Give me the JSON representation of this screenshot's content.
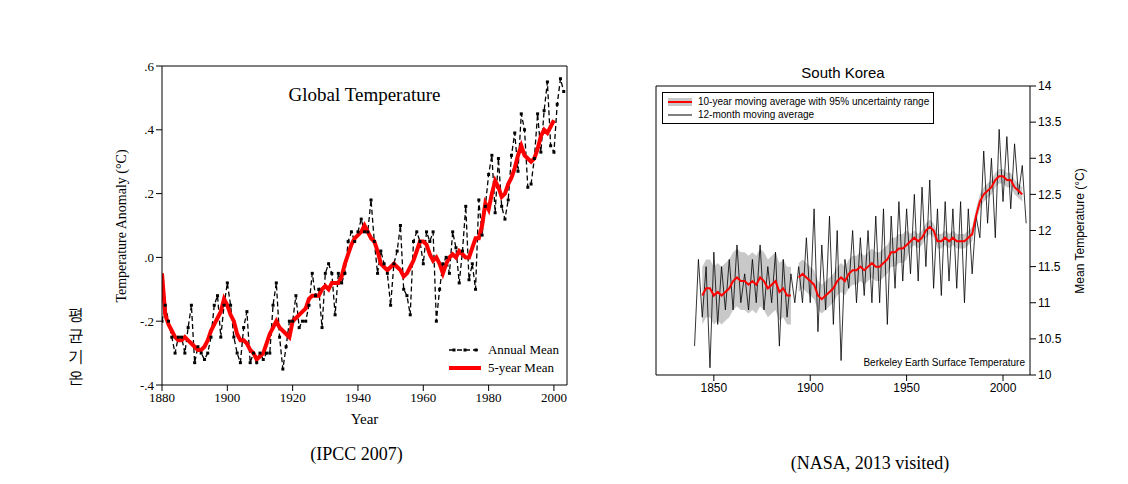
{
  "label": "평균기온",
  "chart_data": [
    {
      "type": "line",
      "title": "Global Temperature",
      "caption": "(IPCC 2007)",
      "xlabel": "Year",
      "ylabel": "Temperature Anomaly (°C)",
      "x": [
        1880,
        1881,
        1882,
        1883,
        1884,
        1885,
        1886,
        1887,
        1888,
        1889,
        1890,
        1891,
        1892,
        1893,
        1894,
        1895,
        1896,
        1897,
        1898,
        1899,
        1900,
        1901,
        1902,
        1903,
        1904,
        1905,
        1906,
        1907,
        1908,
        1909,
        1910,
        1911,
        1912,
        1913,
        1914,
        1915,
        1916,
        1917,
        1918,
        1919,
        1920,
        1921,
        1922,
        1923,
        1924,
        1925,
        1926,
        1927,
        1928,
        1929,
        1930,
        1931,
        1932,
        1933,
        1934,
        1935,
        1936,
        1937,
        1938,
        1939,
        1940,
        1941,
        1942,
        1943,
        1944,
        1945,
        1946,
        1947,
        1948,
        1949,
        1950,
        1951,
        1952,
        1953,
        1954,
        1955,
        1956,
        1957,
        1958,
        1959,
        1960,
        1961,
        1962,
        1963,
        1964,
        1965,
        1966,
        1967,
        1968,
        1969,
        1970,
        1971,
        1972,
        1973,
        1974,
        1975,
        1976,
        1977,
        1978,
        1979,
        1980,
        1981,
        1982,
        1983,
        1984,
        1985,
        1986,
        1987,
        1988,
        1989,
        1990,
        1991,
        1992,
        1993,
        1994,
        1995,
        1996,
        1997,
        1998,
        1999,
        2000,
        2001,
        2002,
        2003
      ],
      "series": [
        {
          "name": "Annual Mean",
          "color": "#000000",
          "line_style": "dashed",
          "marker": "square",
          "values": [
            -0.2,
            -0.15,
            -0.2,
            -0.25,
            -0.3,
            -0.25,
            -0.25,
            -0.3,
            -0.22,
            -0.15,
            -0.33,
            -0.28,
            -0.3,
            -0.32,
            -0.3,
            -0.25,
            -0.15,
            -0.12,
            -0.25,
            -0.15,
            -0.08,
            -0.15,
            -0.25,
            -0.3,
            -0.33,
            -0.22,
            -0.17,
            -0.33,
            -0.3,
            -0.33,
            -0.3,
            -0.32,
            -0.3,
            -0.3,
            -0.15,
            -0.08,
            -0.25,
            -0.35,
            -0.28,
            -0.2,
            -0.2,
            -0.12,
            -0.22,
            -0.2,
            -0.2,
            -0.15,
            -0.05,
            -0.12,
            -0.1,
            -0.22,
            -0.05,
            -0.02,
            -0.05,
            -0.18,
            -0.05,
            -0.08,
            -0.05,
            0.05,
            0.08,
            0.05,
            0.08,
            0.12,
            0.08,
            0.08,
            0.18,
            0.05,
            -0.05,
            0.02,
            -0.02,
            -0.05,
            -0.15,
            -0.02,
            0.02,
            0.1,
            -0.1,
            -0.12,
            -0.18,
            0.05,
            0.08,
            0.05,
            -0.02,
            0.08,
            0.05,
            0.08,
            -0.2,
            -0.1,
            -0.02,
            0,
            -0.05,
            0.08,
            0.03,
            -0.08,
            0.02,
            0.16,
            -0.07,
            -0.02,
            -0.1,
            0.18,
            0.07,
            0.16,
            0.26,
            0.32,
            0.14,
            0.31,
            0.16,
            0.12,
            0.18,
            0.32,
            0.39,
            0.27,
            0.45,
            0.4,
            0.22,
            0.23,
            0.31,
            0.45,
            0.33,
            0.46,
            0.55,
            0.35,
            0.33,
            0.48,
            0.56,
            0.52
          ]
        },
        {
          "name": "5-year Mean",
          "color": "#ff0000",
          "line_style": "solid",
          "values": [
            -0.05,
            -0.18,
            -0.21,
            -0.23,
            -0.25,
            -0.26,
            -0.26,
            -0.25,
            -0.26,
            -0.27,
            -0.28,
            -0.29,
            -0.29,
            -0.28,
            -0.26,
            -0.23,
            -0.21,
            -0.19,
            -0.17,
            -0.13,
            -0.15,
            -0.18,
            -0.2,
            -0.24,
            -0.26,
            -0.26,
            -0.27,
            -0.29,
            -0.3,
            -0.32,
            -0.31,
            -0.3,
            -0.27,
            -0.24,
            -0.22,
            -0.2,
            -0.22,
            -0.23,
            -0.24,
            -0.25,
            -0.2,
            -0.19,
            -0.18,
            -0.17,
            -0.16,
            -0.13,
            -0.12,
            -0.12,
            -0.12,
            -0.1,
            -0.09,
            -0.1,
            -0.08,
            -0.08,
            -0.08,
            -0.06,
            -0.02,
            0.01,
            0.04,
            0.06,
            0.07,
            0.08,
            0.1,
            0.08,
            0.06,
            0.05,
            0.02,
            -0.02,
            -0.03,
            -0.04,
            -0.03,
            -0.02,
            -0.03,
            -0.04,
            -0.06,
            -0.05,
            -0.03,
            -0.01,
            0.02,
            0.05,
            0.05,
            0.04,
            0.01,
            -0.01,
            0,
            -0.02,
            -0.05,
            -0.02,
            0,
            0.01,
            0,
            0.02,
            0.01,
            0,
            0,
            0.03,
            0.06,
            0.06,
            0.1,
            0.17,
            0.15,
            0.2,
            0.24,
            0.22,
            0.19,
            0.2,
            0.23,
            0.25,
            0.28,
            0.32,
            0.35,
            0.32,
            0.31,
            0.3,
            0.31,
            0.34,
            0.38,
            0.4,
            0.39,
            0.41,
            0.43,
            null,
            null,
            null
          ]
        }
      ],
      "xlim": [
        1880,
        2004
      ],
      "xticks": [
        1880,
        1900,
        1920,
        1940,
        1960,
        1980,
        2000
      ],
      "ylim": [
        -0.4,
        0.6
      ],
      "yticks": [
        {
          "value": -0.4,
          "label": "-.4"
        },
        {
          "value": -0.2,
          "label": "-.2"
        },
        {
          "value": 0,
          "label": ".0"
        },
        {
          "value": 0.2,
          "label": ".2"
        },
        {
          "value": 0.4,
          "label": ".4"
        },
        {
          "value": 0.6,
          "label": ".6"
        }
      ],
      "legend": "lower right",
      "grid": false
    },
    {
      "type": "line",
      "title": "South Korea",
      "caption": "(NASA, 2013 visited)",
      "ylabel": "Mean Temperature (°C)",
      "annotation": "Berkeley Earth Surface Temperature",
      "x": [
        1840,
        1842,
        1844,
        1846,
        1848,
        1850,
        1852,
        1854,
        1856,
        1858,
        1860,
        1862,
        1864,
        1866,
        1868,
        1870,
        1872,
        1874,
        1876,
        1878,
        1880,
        1882,
        1884,
        1886,
        1888,
        1890,
        1892,
        1894,
        1896,
        1898,
        1900,
        1902,
        1904,
        1906,
        1908,
        1910,
        1912,
        1914,
        1916,
        1918,
        1920,
        1922,
        1924,
        1926,
        1928,
        1930,
        1932,
        1934,
        1936,
        1938,
        1940,
        1942,
        1944,
        1946,
        1948,
        1950,
        1952,
        1954,
        1956,
        1958,
        1960,
        1962,
        1964,
        1966,
        1968,
        1970,
        1972,
        1974,
        1976,
        1978,
        1980,
        1982,
        1984,
        1986,
        1988,
        1990,
        1992,
        1994,
        1996,
        1998,
        2000,
        2002,
        2004,
        2006,
        2008,
        2010,
        2012
      ],
      "series": [
        {
          "name": "10-year moving average with 95% uncertainty range",
          "color": "#ff0000",
          "line_style": "solid",
          "values": [
            null,
            null,
            11.1,
            11.2,
            11.2,
            11.1,
            11.15,
            11.1,
            11.15,
            11.2,
            11.3,
            11.35,
            11.3,
            11.3,
            11.25,
            11.3,
            11.25,
            11.35,
            11.3,
            11.2,
            11.25,
            11.3,
            11.15,
            11.2,
            11.1,
            11.1,
            null,
            11.35,
            11.4,
            11.35,
            11.3,
            11.25,
            11.1,
            11.05,
            11.1,
            11.15,
            11.2,
            11.3,
            11.35,
            11.3,
            11.4,
            11.45,
            11.45,
            11.5,
            11.45,
            11.5,
            11.55,
            11.5,
            11.5,
            11.55,
            11.6,
            11.7,
            11.7,
            11.75,
            11.75,
            11.8,
            11.85,
            11.9,
            11.85,
            11.9,
            12.0,
            12.05,
            12.0,
            11.85,
            11.85,
            11.9,
            11.85,
            11.9,
            11.85,
            11.85,
            11.85,
            11.9,
            11.95,
            12.2,
            12.4,
            12.5,
            12.55,
            12.6,
            12.7,
            12.75,
            12.75,
            12.7,
            12.7,
            12.6,
            12.55,
            12.5,
            null
          ],
          "uncertainty": [
            null,
            null,
            0.4,
            0.4,
            0.4,
            0.4,
            0.4,
            0.4,
            0.4,
            0.4,
            0.4,
            0.4,
            0.4,
            0.4,
            0.4,
            0.4,
            0.4,
            0.4,
            0.4,
            0.4,
            0.4,
            0.4,
            0.4,
            0.4,
            0.4,
            0.4,
            null,
            0.2,
            0.2,
            0.2,
            0.2,
            0.2,
            0.2,
            0.2,
            0.2,
            0.2,
            0.2,
            0.2,
            0.2,
            0.2,
            0.2,
            0.2,
            0.2,
            0.2,
            0.2,
            0.2,
            0.2,
            0.2,
            0.2,
            0.2,
            0.2,
            0.2,
            0.2,
            0.2,
            0.2,
            0.2,
            0.1,
            0.1,
            0.1,
            0.1,
            0.1,
            0.1,
            0.1,
            0.1,
            0.1,
            0.1,
            0.1,
            0.1,
            0.1,
            0.1,
            0.1,
            0.1,
            0.1,
            0.1,
            0.1,
            0.1,
            0.1,
            0.1,
            0.1,
            0.1,
            0.1,
            0.1,
            0.1,
            0.1,
            0.1,
            0.1,
            null
          ]
        },
        {
          "name": "12-month moving average",
          "color": "#000000",
          "line_style": "solid",
          "values": [
            10.4,
            11.6,
            10.8,
            11.5,
            10.1,
            11.7,
            10.7,
            11.5,
            10.9,
            11.6,
            10.9,
            11.8,
            11.0,
            11.4,
            10.9,
            11.6,
            11.0,
            11.8,
            10.9,
            11.5,
            11.0,
            11.7,
            10.4,
            11.6,
            10.8,
            11.4,
            11.0,
            11.5,
            11.0,
            11.9,
            11.0,
            12.3,
            10.6,
            11.8,
            10.9,
            12.2,
            10.7,
            12.0,
            10.2,
            11.6,
            11.2,
            12.0,
            11.0,
            11.9,
            11.1,
            12.0,
            11.0,
            12.2,
            11.0,
            12.3,
            10.7,
            12.2,
            11.2,
            12.4,
            11.3,
            12.3,
            11.4,
            12.5,
            11.3,
            12.6,
            11.5,
            12.7,
            11.2,
            12.3,
            11.1,
            12.4,
            11.3,
            12.3,
            11.2,
            12.4,
            11.0,
            12.3,
            11.4,
            12.2,
            11.9,
            13.1,
            12.1,
            13.0,
            11.9,
            13.4,
            12.4,
            13.3,
            12.3,
            13.2,
            12.5,
            12.9,
            12.1
          ]
        }
      ],
      "xlim": [
        1820,
        2014
      ],
      "xticks": [
        1850,
        1900,
        1950,
        2000
      ],
      "ylim": [
        10,
        14
      ],
      "yticks": [
        10,
        10.5,
        11,
        11.5,
        12,
        12.5,
        13,
        13.5,
        14
      ],
      "legend": "upper left",
      "grid": false
    }
  ]
}
